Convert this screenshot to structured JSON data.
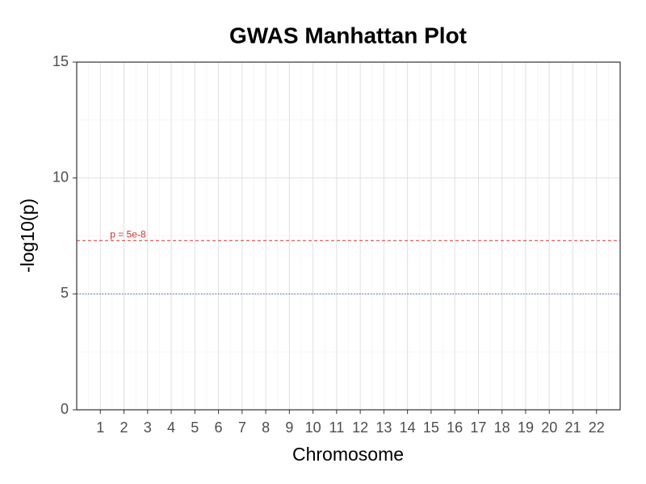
{
  "chart_data": {
    "type": "manhattan",
    "title": "GWAS Manhattan Plot",
    "x_label": "Chromosome",
    "y_label": "-log10(p)",
    "categories": [
      "1",
      "2",
      "3",
      "4",
      "5",
      "6",
      "7",
      "8",
      "9",
      "10",
      "11",
      "12",
      "13",
      "14",
      "15",
      "16",
      "17",
      "18",
      "19",
      "20",
      "21",
      "22"
    ],
    "ylim": [
      0,
      15
    ],
    "yticks": [
      0,
      5,
      10,
      15
    ],
    "grid": true,
    "minor_grid": true,
    "hlines": [
      {
        "value": 7.3,
        "label": "p = 5e-8",
        "color": "#cc3333",
        "style": "dashed"
      },
      {
        "value": 5,
        "color": "#4a6fa5",
        "style": "dotted"
      }
    ]
  }
}
